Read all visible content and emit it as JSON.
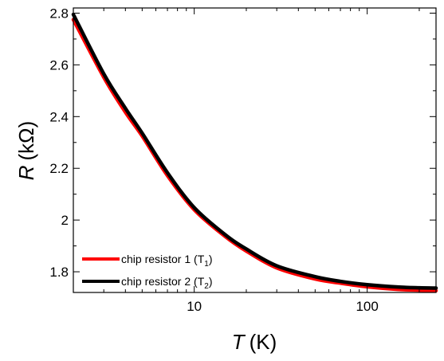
{
  "chart_data": {
    "type": "line",
    "x_scale": "log",
    "xlabel": {
      "symbol": "T",
      "unit": "(K)"
    },
    "ylabel": {
      "symbol": "R",
      "unit": "(kΩ)"
    },
    "xlim": [
      2,
      250
    ],
    "ylim": [
      1.72,
      2.82
    ],
    "x_ticks": [
      {
        "value": 10,
        "label": "10"
      },
      {
        "value": 100,
        "label": "100"
      }
    ],
    "y_ticks": [
      {
        "value": 1.8,
        "label": "1.8"
      },
      {
        "value": 2.0,
        "label": "2"
      },
      {
        "value": 2.2,
        "label": "2.2"
      },
      {
        "value": 2.4,
        "label": "2.4"
      },
      {
        "value": 2.6,
        "label": "2.6"
      },
      {
        "value": 2.8,
        "label": "2.8"
      }
    ],
    "legend_position": "bottom-left",
    "series": [
      {
        "name": "chip resistor 1 (T1)",
        "legend_main": "chip resistor 1 (T",
        "legend_sub": "1",
        "legend_tail": ")",
        "color": "#ff0000",
        "x": [
          2.0,
          3.0,
          4.0,
          5.0,
          7.0,
          10.0,
          15.0,
          20.0,
          30.0,
          50.0,
          70.0,
          100.0,
          150.0,
          200.0,
          250.0
        ],
        "y": [
          2.775,
          2.552,
          2.417,
          2.325,
          2.172,
          2.04,
          1.938,
          1.88,
          1.815,
          1.772,
          1.756,
          1.742,
          1.732,
          1.729,
          1.727
        ]
      },
      {
        "name": "chip resistor 2 (T2)",
        "legend_main": "chip resistor 2 (T",
        "legend_sub": "2",
        "legend_tail": ")",
        "color": "#000000",
        "x": [
          2.0,
          3.0,
          4.0,
          5.0,
          7.0,
          10.0,
          15.0,
          20.0,
          30.0,
          50.0,
          70.0,
          100.0,
          150.0,
          200.0,
          250.0
        ],
        "y": [
          2.795,
          2.565,
          2.432,
          2.336,
          2.183,
          2.048,
          1.945,
          1.888,
          1.823,
          1.781,
          1.763,
          1.75,
          1.741,
          1.738,
          1.737
        ]
      }
    ]
  }
}
